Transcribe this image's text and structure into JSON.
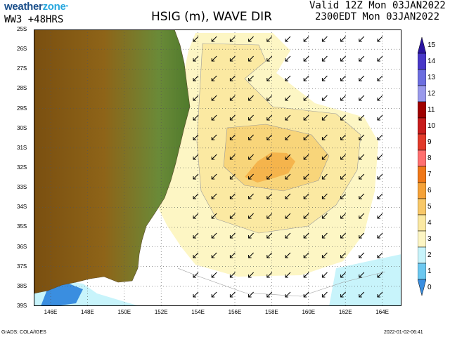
{
  "header": {
    "logo_main": "weather",
    "logo_accent": "zone",
    "logo_mark": "°",
    "model": "WW3  +48HRS",
    "title": "HSIG (m), WAVE DIR",
    "valid_line1": "Valid 12Z Mon 03JAN2022",
    "valid_line2": "2300EDT Mon 03JAN2022"
  },
  "map": {
    "lat_labels": [
      "25S",
      "26S",
      "27S",
      "28S",
      "29S",
      "30S",
      "31S",
      "32S",
      "33S",
      "34S",
      "35S",
      "36S",
      "37S",
      "38S",
      "39S"
    ],
    "lon_labels": [
      "146E",
      "148E",
      "150E",
      "152E",
      "154E",
      "156E",
      "158E",
      "160E",
      "162E",
      "164E"
    ],
    "wave_direction": "arrows pointing south-west",
    "colors": {
      "land": "#8a5c14",
      "ocean_0_1": "#ffffff",
      "ocean_1_2": "#c8f4fb",
      "ocean_2_3": "#fdf6c4",
      "ocean_3_4": "#fbe9a2",
      "ocean_4_5": "#f8d57a",
      "ocean_5_6": "#f5b44c",
      "coast_shallow": "#3a8ee0"
    }
  },
  "colorbar": {
    "labels": [
      "15",
      "14",
      "13",
      "12",
      "11",
      "10",
      "9",
      "8",
      "7",
      "6",
      "5",
      "4",
      "3",
      "2",
      "1",
      "0"
    ],
    "colors": [
      "#2a14a0",
      "#4838c8",
      "#6c6ee0",
      "#9a9aec",
      "#a00000",
      "#c81c1c",
      "#e23a2a",
      "#ff7070",
      "#f07818",
      "#f5a238",
      "#f8c868",
      "#fbe9a2",
      "#fdf6c4",
      "#c8f4fb",
      "#6cc8f0",
      "#3a8ee0"
    ]
  },
  "footer": {
    "credit": "GrADS: COLA/IGES",
    "timestamp": "2022-01-02-06:41"
  }
}
